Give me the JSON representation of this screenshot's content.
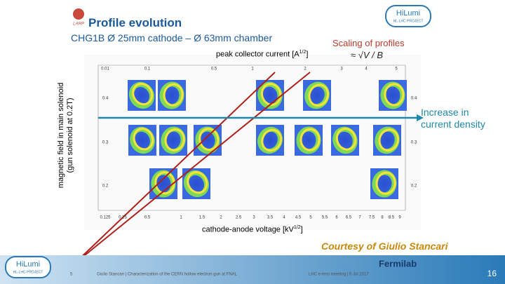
{
  "logos": {
    "larp": "LARP",
    "hilumi_top": "HiLumi",
    "hilumi_top_sub": "HL-LHC PROJECT",
    "hilumi_bottom": "HiLumi",
    "hilumi_bottom_sub": "HL-LHC PROJECT",
    "fermilab": "Fermilab"
  },
  "header": {
    "title": "Profile evolution",
    "subtitle": "CHG1B Ø 25mm cathode – Ø 63mm chamber"
  },
  "scaling": {
    "title": "Scaling of profiles",
    "formula": "≈ √V / B"
  },
  "figure": {
    "top_label": {
      "text": "peak collector current [A",
      "sup": "1/2",
      "end": "]"
    },
    "y_label": [
      "magnetic field in main solenoid",
      "(gun solenoid at 0.2T)"
    ],
    "bottom_label": {
      "text": "cathode-anode voltage [kV",
      "sup": "1/2",
      "end": "]"
    },
    "top_ticks": [
      0.01,
      0.1,
      0.5,
      1,
      2,
      3,
      4,
      5
    ],
    "bottom_ticks": [
      0.125,
      0.25,
      0.5,
      1,
      1.5,
      2,
      2.5,
      3,
      3.5,
      4,
      4.5,
      5,
      5.5,
      6,
      6.5,
      7,
      7.5,
      8,
      8.5,
      9
    ],
    "left_ticks": [
      0.4,
      0.3,
      0.2
    ],
    "right_ticks": [
      0.4,
      0.3,
      0.2
    ]
  },
  "annotation": [
    "Increase in",
    "current density"
  ],
  "courtesy": "Courtesy of Giulio Stancari",
  "footer": {
    "inner_page": 5,
    "author": "Giulio Stancari | Characterization of the CERN hollow electron gun at FNAL",
    "meeting": "LHC e-lens meeting | 6 Jul 2017",
    "page": 16
  }
}
